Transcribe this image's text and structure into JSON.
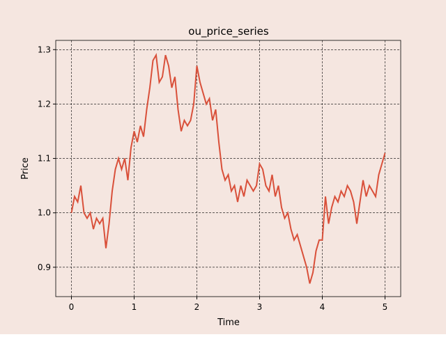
{
  "chart_data": {
    "type": "line",
    "title": "ou_price_series",
    "x_label": "Time",
    "y_label": "Price",
    "x": [
      0,
      0.05,
      0.1,
      0.15,
      0.2,
      0.25,
      0.3,
      0.35,
      0.4,
      0.45,
      0.5,
      0.55,
      0.6,
      0.65,
      0.7,
      0.75,
      0.8,
      0.85,
      0.9,
      0.95,
      1.0,
      1.05,
      1.1,
      1.15,
      1.2,
      1.25,
      1.3,
      1.35,
      1.4,
      1.45,
      1.5,
      1.55,
      1.6,
      1.65,
      1.7,
      1.75,
      1.8,
      1.85,
      1.9,
      1.95,
      2.0,
      2.05,
      2.1,
      2.15,
      2.2,
      2.25,
      2.3,
      2.35,
      2.4,
      2.45,
      2.5,
      2.55,
      2.6,
      2.65,
      2.7,
      2.75,
      2.8,
      2.85,
      2.9,
      2.95,
      3.0,
      3.05,
      3.1,
      3.15,
      3.2,
      3.25,
      3.3,
      3.35,
      3.4,
      3.45,
      3.5,
      3.55,
      3.6,
      3.65,
      3.7,
      3.75,
      3.8,
      3.85,
      3.9,
      3.95,
      4.0,
      4.05,
      4.1,
      4.15,
      4.2,
      4.25,
      4.3,
      4.35,
      4.4,
      4.45,
      4.5,
      4.55,
      4.6,
      4.65,
      4.7,
      4.75,
      4.8,
      4.85,
      4.9,
      4.95,
      5.0
    ],
    "series": [
      {
        "name": "Price",
        "color": "#d9503a",
        "values": [
          1.0,
          1.03,
          1.02,
          1.05,
          1.0,
          0.99,
          1.0,
          0.97,
          0.99,
          0.98,
          0.99,
          0.935,
          0.98,
          1.04,
          1.08,
          1.1,
          1.08,
          1.1,
          1.06,
          1.12,
          1.15,
          1.13,
          1.16,
          1.14,
          1.19,
          1.23,
          1.28,
          1.29,
          1.24,
          1.25,
          1.29,
          1.27,
          1.23,
          1.25,
          1.19,
          1.15,
          1.17,
          1.16,
          1.17,
          1.2,
          1.27,
          1.24,
          1.22,
          1.2,
          1.21,
          1.17,
          1.19,
          1.13,
          1.08,
          1.06,
          1.07,
          1.04,
          1.05,
          1.02,
          1.05,
          1.03,
          1.06,
          1.05,
          1.04,
          1.05,
          1.09,
          1.08,
          1.05,
          1.04,
          1.07,
          1.03,
          1.05,
          1.01,
          0.99,
          1.0,
          0.97,
          0.95,
          0.96,
          0.94,
          0.92,
          0.9,
          0.87,
          0.89,
          0.93,
          0.95,
          0.95,
          1.03,
          0.98,
          1.01,
          1.03,
          1.02,
          1.04,
          1.03,
          1.05,
          1.04,
          1.02,
          0.98,
          1.02,
          1.06,
          1.03,
          1.05,
          1.04,
          1.03,
          1.07,
          1.09,
          1.11
        ]
      }
    ],
    "xlim": [
      -0.25,
      5.25
    ],
    "ylim": [
      0.846,
      1.317
    ],
    "xticks": [
      0,
      1,
      2,
      3,
      4,
      5
    ],
    "yticks": [
      {
        "value": 0.9,
        "label": "0.9"
      },
      {
        "value": 1.0,
        "label": "1.0"
      },
      {
        "value": 1.1,
        "label": "1.1"
      },
      {
        "value": 1.2,
        "label": "1.2"
      },
      {
        "value": 1.3,
        "label": "1.3"
      }
    ],
    "grid": true,
    "background": "#f5e6e0"
  }
}
